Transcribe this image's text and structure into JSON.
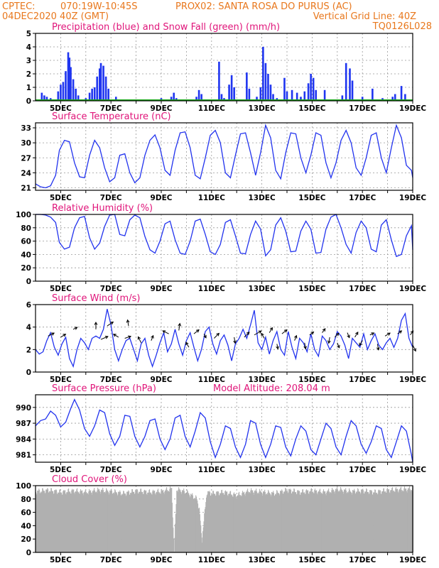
{
  "header": {
    "line1_left": "CPTEC:",
    "line1_coords": "070:19W-10:45S",
    "line1_site": "PROX02: SANTA ROSA DO PURUS (AC)",
    "line2_left": "04DEC2020 40Z (GMT)",
    "line2_right": "Vertical Grid Line: 40Z",
    "code": "TQ0126L028"
  },
  "colors": {
    "precip": "#1f35f0",
    "snow": "#1aaa1a",
    "line": "#2233ee",
    "cloud": "#b0b0b0",
    "titles": "#e0157a",
    "header": "#e8771c"
  },
  "x_ticks": [
    "5DEC",
    "7DEC",
    "9DEC",
    "11DEC",
    "13DEC",
    "15DEC",
    "17DEC",
    "19DEC"
  ],
  "chart_data": [
    {
      "id": "precip",
      "type": "bar",
      "title": "Precipitation (blue) and Snow Fall (green) (mm/h)",
      "ylim": [
        0,
        5
      ],
      "yticks": [
        "0",
        "1",
        "2",
        "3",
        "4",
        "5"
      ],
      "x_range_days": [
        4.0,
        19.0
      ],
      "values": [
        [
          4.25,
          0.6
        ],
        [
          4.35,
          0.4
        ],
        [
          4.45,
          0.3
        ],
        [
          4.6,
          0.2
        ],
        [
          4.75,
          0.1
        ],
        [
          4.9,
          0.7
        ],
        [
          5.0,
          1.2
        ],
        [
          5.1,
          1.4
        ],
        [
          5.2,
          2.2
        ],
        [
          5.3,
          3.6
        ],
        [
          5.35,
          3.2
        ],
        [
          5.4,
          2.5
        ],
        [
          5.5,
          1.6
        ],
        [
          5.6,
          0.9
        ],
        [
          5.7,
          0.4
        ],
        [
          6.0,
          0.2
        ],
        [
          6.15,
          0.6
        ],
        [
          6.25,
          0.9
        ],
        [
          6.35,
          1.0
        ],
        [
          6.45,
          1.8
        ],
        [
          6.55,
          2.4
        ],
        [
          6.6,
          2.8
        ],
        [
          6.7,
          2.6
        ],
        [
          6.8,
          1.8
        ],
        [
          6.9,
          0.9
        ],
        [
          7.2,
          0.3
        ],
        [
          9.0,
          0.2
        ],
        [
          9.4,
          0.3
        ],
        [
          9.5,
          0.6
        ],
        [
          9.6,
          0.2
        ],
        [
          10.4,
          0.3
        ],
        [
          10.5,
          0.8
        ],
        [
          10.6,
          0.5
        ],
        [
          11.3,
          2.9
        ],
        [
          11.4,
          0.5
        ],
        [
          11.5,
          0.2
        ],
        [
          11.7,
          1.2
        ],
        [
          11.8,
          1.9
        ],
        [
          11.9,
          1.0
        ],
        [
          12.4,
          2.1
        ],
        [
          12.5,
          0.9
        ],
        [
          12.8,
          0.3
        ],
        [
          12.95,
          1.0
        ],
        [
          13.05,
          4.0
        ],
        [
          13.15,
          2.8
        ],
        [
          13.25,
          2.0
        ],
        [
          13.35,
          1.2
        ],
        [
          13.45,
          0.5
        ],
        [
          13.6,
          0.2
        ],
        [
          13.9,
          1.7
        ],
        [
          14.0,
          0.7
        ],
        [
          14.2,
          0.8
        ],
        [
          14.4,
          0.6
        ],
        [
          14.55,
          0.3
        ],
        [
          14.7,
          0.7
        ],
        [
          14.85,
          1.3
        ],
        [
          14.95,
          2.0
        ],
        [
          15.05,
          1.7
        ],
        [
          15.15,
          0.8
        ],
        [
          15.5,
          0.8
        ],
        [
          16.2,
          0.4
        ],
        [
          16.35,
          2.8
        ],
        [
          16.5,
          2.4
        ],
        [
          16.6,
          1.5
        ],
        [
          17.0,
          0.3
        ],
        [
          17.4,
          0.9
        ],
        [
          17.8,
          0.2
        ],
        [
          18.0,
          0.1
        ],
        [
          18.2,
          0.3
        ],
        [
          18.3,
          0.5
        ],
        [
          18.55,
          1.1
        ],
        [
          18.7,
          0.5
        ]
      ]
    },
    {
      "id": "temp",
      "type": "line",
      "title": "Surface Temperature (nC)",
      "ylim": [
        20.5,
        34.0
      ],
      "yticks": [
        "21",
        "24",
        "27",
        "30",
        "33"
      ],
      "x": [
        4.0,
        4.2,
        4.4,
        4.6,
        4.8,
        4.95,
        5.15,
        5.35,
        5.55,
        5.75,
        5.95,
        6.15,
        6.35,
        6.55,
        6.75,
        6.95,
        7.15,
        7.35,
        7.55,
        7.75,
        7.95,
        8.15,
        8.35,
        8.55,
        8.75,
        8.95,
        9.15,
        9.35,
        9.55,
        9.75,
        9.95,
        10.15,
        10.35,
        10.55,
        10.75,
        10.95,
        11.15,
        11.35,
        11.55,
        11.75,
        11.95,
        12.15,
        12.35,
        12.55,
        12.75,
        12.95,
        13.15,
        13.35,
        13.55,
        13.75,
        13.95,
        14.15,
        14.35,
        14.55,
        14.75,
        14.95,
        15.15,
        15.35,
        15.55,
        15.75,
        15.95,
        16.15,
        16.35,
        16.55,
        16.75,
        16.95,
        17.15,
        17.35,
        17.55,
        17.75,
        17.95,
        18.15,
        18.35,
        18.55,
        18.75,
        18.95,
        19.0
      ],
      "values": [
        21.8,
        21.2,
        21.0,
        21.4,
        23.5,
        28.5,
        30.5,
        30.2,
        26.0,
        23.2,
        23.0,
        27.5,
        30.5,
        29.0,
        25.0,
        22.2,
        23.0,
        27.5,
        27.8,
        24.0,
        22.0,
        23.0,
        27.5,
        30.5,
        31.6,
        29.0,
        24.5,
        23.5,
        28.5,
        32.0,
        32.2,
        29.0,
        23.5,
        22.8,
        27.0,
        31.5,
        32.5,
        30.0,
        24.0,
        23.0,
        27.5,
        31.8,
        32.0,
        28.0,
        23.5,
        28.0,
        33.5,
        31.0,
        24.5,
        22.8,
        28.0,
        32.0,
        31.8,
        27.0,
        24.0,
        27.5,
        32.0,
        31.5,
        26.0,
        23.0,
        26.0,
        30.5,
        32.5,
        30.0,
        25.0,
        23.5,
        27.0,
        31.5,
        32.0,
        27.0,
        24.0,
        29.0,
        33.5,
        31.0,
        25.5,
        24.5,
        23.0
      ]
    },
    {
      "id": "rh",
      "type": "line",
      "title": "Relative Humidity (%)",
      "ylim": [
        0,
        100
      ],
      "yticks": [
        "0",
        "20",
        "40",
        "60",
        "80",
        "100"
      ],
      "x": [
        4.0,
        4.2,
        4.4,
        4.6,
        4.8,
        4.95,
        5.15,
        5.35,
        5.55,
        5.75,
        5.95,
        6.15,
        6.35,
        6.55,
        6.75,
        6.95,
        7.15,
        7.35,
        7.55,
        7.75,
        7.95,
        8.15,
        8.35,
        8.55,
        8.75,
        8.95,
        9.15,
        9.35,
        9.55,
        9.75,
        9.95,
        10.15,
        10.35,
        10.55,
        10.75,
        10.95,
        11.15,
        11.35,
        11.55,
        11.75,
        11.95,
        12.15,
        12.35,
        12.55,
        12.75,
        12.95,
        13.15,
        13.35,
        13.55,
        13.75,
        13.95,
        14.15,
        14.35,
        14.55,
        14.75,
        14.95,
        15.15,
        15.35,
        15.55,
        15.75,
        15.95,
        16.15,
        16.35,
        16.55,
        16.75,
        16.95,
        17.15,
        17.35,
        17.55,
        17.75,
        17.95,
        18.15,
        18.35,
        18.55,
        18.75,
        18.95,
        19.0
      ],
      "values": [
        100,
        100,
        99,
        96,
        88,
        58,
        48,
        51,
        80,
        95,
        97,
        65,
        48,
        57,
        82,
        99,
        100,
        70,
        68,
        92,
        99,
        95,
        67,
        47,
        42,
        60,
        86,
        90,
        62,
        42,
        40,
        60,
        90,
        93,
        70,
        44,
        40,
        55,
        88,
        92,
        68,
        42,
        41,
        70,
        90,
        78,
        38,
        47,
        84,
        95,
        75,
        44,
        45,
        75,
        90,
        78,
        42,
        43,
        78,
        96,
        100,
        80,
        55,
        42,
        73,
        90,
        80,
        48,
        44,
        84,
        92,
        62,
        37,
        40,
        68,
        83,
        47
      ]
    },
    {
      "id": "wind",
      "type": "line",
      "title": "Surface Wind (m/s)",
      "ylim": [
        0,
        6
      ],
      "yticks": [
        "0",
        "2",
        "4",
        "6"
      ],
      "x": [
        4.0,
        4.15,
        4.3,
        4.45,
        4.6,
        4.75,
        4.9,
        5.05,
        5.2,
        5.35,
        5.5,
        5.65,
        5.8,
        5.95,
        6.1,
        6.25,
        6.4,
        6.55,
        6.7,
        6.85,
        7.0,
        7.15,
        7.3,
        7.45,
        7.6,
        7.75,
        7.9,
        8.05,
        8.2,
        8.35,
        8.5,
        8.65,
        8.8,
        8.95,
        9.1,
        9.25,
        9.4,
        9.55,
        9.7,
        9.85,
        10.0,
        10.15,
        10.3,
        10.45,
        10.6,
        10.75,
        10.9,
        11.05,
        11.2,
        11.35,
        11.5,
        11.65,
        11.8,
        11.95,
        12.1,
        12.25,
        12.4,
        12.55,
        12.7,
        12.85,
        13.0,
        13.15,
        13.3,
        13.45,
        13.6,
        13.75,
        13.9,
        14.05,
        14.2,
        14.35,
        14.5,
        14.65,
        14.8,
        14.95,
        15.1,
        15.25,
        15.4,
        15.55,
        15.7,
        15.85,
        16.0,
        16.15,
        16.3,
        16.45,
        16.6,
        16.75,
        16.9,
        17.05,
        17.2,
        17.35,
        17.5,
        17.65,
        17.8,
        17.95,
        18.1,
        18.25,
        18.4,
        18.55,
        18.7,
        18.85,
        19.0
      ],
      "values": [
        2.0,
        1.6,
        1.8,
        2.8,
        3.5,
        2.2,
        1.5,
        2.5,
        3.1,
        1.2,
        0.5,
        2.0,
        3.0,
        2.6,
        2.0,
        3.0,
        3.2,
        3.0,
        3.8,
        5.6,
        4.2,
        2.0,
        1.0,
        2.0,
        2.8,
        3.0,
        2.0,
        1.0,
        2.5,
        3.0,
        1.5,
        0.5,
        1.5,
        2.6,
        3.5,
        1.8,
        2.5,
        3.8,
        2.5,
        1.5,
        2.8,
        3.5,
        2.2,
        1.0,
        2.0,
        3.6,
        4.0,
        2.5,
        1.6,
        2.8,
        3.3,
        2.4,
        1.0,
        2.5,
        3.0,
        3.8,
        3.0,
        4.2,
        5.5,
        2.6,
        2.0,
        3.1,
        1.6,
        2.8,
        3.6,
        2.0,
        1.5,
        3.6,
        2.2,
        1.2,
        3.0,
        2.6,
        1.8,
        3.4,
        2.0,
        1.4,
        3.2,
        2.8,
        2.0,
        2.5,
        3.6,
        3.2,
        2.4,
        1.2,
        3.0,
        2.6,
        2.2,
        3.4,
        2.0,
        2.8,
        3.4,
        2.4,
        2.0,
        2.6,
        3.0,
        2.2,
        3.0,
        4.6,
        5.2,
        3.0,
        2.2
      ],
      "arrows": [
        [
          4.5,
          3.2,
          0.6,
          0.3
        ],
        [
          5.0,
          3.1,
          0.5,
          0.3
        ],
        [
          5.5,
          3.8,
          0.4,
          0.2
        ],
        [
          6.4,
          3.8,
          0.0,
          0.7
        ],
        [
          6.6,
          2.9,
          0.7,
          0.3
        ],
        [
          6.85,
          4.1,
          0.6,
          0.4
        ],
        [
          7.3,
          3.1,
          -0.5,
          0.3
        ],
        [
          7.55,
          3.0,
          0.6,
          0.2
        ],
        [
          7.7,
          4.1,
          -0.1,
          0.6
        ],
        [
          8.2,
          2.6,
          -0.3,
          0.6
        ],
        [
          8.6,
          2.8,
          0.2,
          0.5
        ],
        [
          9.3,
          3.4,
          -0.6,
          0.3
        ],
        [
          9.7,
          3.7,
          0.1,
          0.7
        ],
        [
          10.1,
          2.2,
          -0.3,
          0.5
        ],
        [
          10.3,
          3.4,
          0.5,
          0.4
        ],
        [
          10.7,
          3.4,
          0.2,
          -0.4
        ],
        [
          11.1,
          3.0,
          0.5,
          0.5
        ],
        [
          11.9,
          3.1,
          0.1,
          -0.6
        ],
        [
          12.3,
          3.1,
          0.5,
          0.5
        ],
        [
          12.7,
          3.3,
          0.7,
          0.4
        ],
        [
          13.1,
          3.0,
          -0.3,
          0.5
        ],
        [
          13.3,
          3.5,
          0.3,
          0.5
        ],
        [
          13.6,
          2.5,
          0.1,
          -0.5
        ],
        [
          13.8,
          3.4,
          0.5,
          0.4
        ],
        [
          14.3,
          2.8,
          0.2,
          0.5
        ],
        [
          14.7,
          2.6,
          0.1,
          -0.6
        ],
        [
          14.9,
          3.3,
          0.4,
          0.3
        ],
        [
          15.4,
          3.5,
          0.3,
          0.4
        ],
        [
          15.7,
          3.1,
          -0.1,
          -0.6
        ],
        [
          15.9,
          3.1,
          0.4,
          0.4
        ],
        [
          16.0,
          2.6,
          0.2,
          -0.5
        ],
        [
          16.4,
          3.5,
          0.2,
          -0.5
        ],
        [
          16.7,
          3.1,
          0.3,
          0.5
        ],
        [
          17.0,
          2.8,
          -0.3,
          -0.5
        ],
        [
          17.3,
          3.3,
          0.4,
          0.2
        ],
        [
          17.6,
          2.5,
          0.1,
          -0.6
        ],
        [
          17.9,
          3.2,
          0.5,
          0.3
        ],
        [
          18.4,
          3.4,
          0.4,
          0.3
        ],
        [
          18.9,
          3.3,
          0.3,
          0.4
        ],
        [
          19.0,
          2.4,
          0.3,
          -0.6
        ]
      ]
    },
    {
      "id": "pres",
      "type": "line",
      "title": "Surface Pressure (hPa)",
      "subtitle": "Model Altitude: 208.04 m",
      "ylim": [
        979.6,
        992.4
      ],
      "yticks": [
        "981",
        "984",
        "987",
        "990"
      ],
      "x": [
        4.0,
        4.2,
        4.4,
        4.6,
        4.8,
        5.0,
        5.2,
        5.4,
        5.55,
        5.75,
        5.95,
        6.15,
        6.35,
        6.55,
        6.75,
        6.95,
        7.15,
        7.35,
        7.55,
        7.75,
        7.95,
        8.15,
        8.35,
        8.55,
        8.75,
        8.95,
        9.15,
        9.35,
        9.55,
        9.75,
        9.95,
        10.15,
        10.35,
        10.55,
        10.75,
        10.95,
        11.15,
        11.35,
        11.55,
        11.75,
        11.95,
        12.15,
        12.35,
        12.55,
        12.75,
        12.95,
        13.15,
        13.35,
        13.55,
        13.75,
        13.95,
        14.15,
        14.35,
        14.55,
        14.75,
        14.95,
        15.15,
        15.35,
        15.55,
        15.75,
        15.95,
        16.15,
        16.35,
        16.55,
        16.75,
        16.95,
        17.15,
        17.35,
        17.55,
        17.75,
        17.95,
        18.15,
        18.35,
        18.55,
        18.75,
        18.95,
        19.0
      ],
      "values": [
        986.5,
        987.5,
        987.8,
        989.3,
        988.5,
        986.3,
        987.2,
        989.8,
        991.5,
        989.5,
        986.0,
        984.5,
        986.5,
        989.5,
        989.0,
        985.0,
        982.8,
        984.5,
        988.5,
        988.3,
        984.5,
        982.5,
        984.5,
        987.5,
        987.8,
        984.0,
        982.0,
        984.0,
        988.0,
        988.5,
        984.5,
        982.5,
        985.5,
        989.0,
        988.0,
        983.5,
        980.5,
        983.0,
        986.5,
        986.0,
        982.5,
        980.5,
        983.0,
        987.5,
        987.0,
        983.0,
        980.5,
        983.0,
        986.5,
        986.2,
        982.5,
        980.8,
        984.0,
        986.5,
        985.5,
        982.0,
        981.0,
        984.0,
        987.0,
        986.0,
        982.5,
        981.0,
        984.5,
        987.5,
        986.5,
        983.0,
        981.3,
        983.5,
        986.5,
        986.0,
        982.0,
        980.5,
        983.5,
        986.5,
        985.5,
        981.0,
        979.6
      ]
    },
    {
      "id": "cloud",
      "type": "area",
      "title": "Cloud Cover (%)",
      "ylim": [
        0,
        100
      ],
      "yticks": [
        "0",
        "20",
        "40",
        "60",
        "80",
        "100"
      ],
      "x": [
        4.0,
        4.5,
        5.0,
        5.5,
        6.0,
        6.5,
        7.0,
        7.5,
        8.0,
        8.5,
        9.0,
        9.4,
        9.5,
        9.6,
        10.0,
        10.4,
        10.5,
        10.6,
        10.8,
        11.0,
        11.5,
        12.0,
        12.5,
        13.0,
        13.5,
        14.0,
        14.5,
        15.0,
        15.5,
        16.0,
        16.5,
        17.0,
        17.5,
        18.0,
        18.5,
        19.0
      ],
      "values": [
        91,
        93,
        90,
        92,
        90,
        93,
        91,
        88,
        92,
        90,
        91,
        95,
        1,
        94,
        90,
        80,
        65,
        18,
        90,
        88,
        90,
        85,
        92,
        90,
        88,
        93,
        90,
        92,
        90,
        94,
        91,
        92,
        90,
        93,
        94,
        95
      ]
    }
  ]
}
